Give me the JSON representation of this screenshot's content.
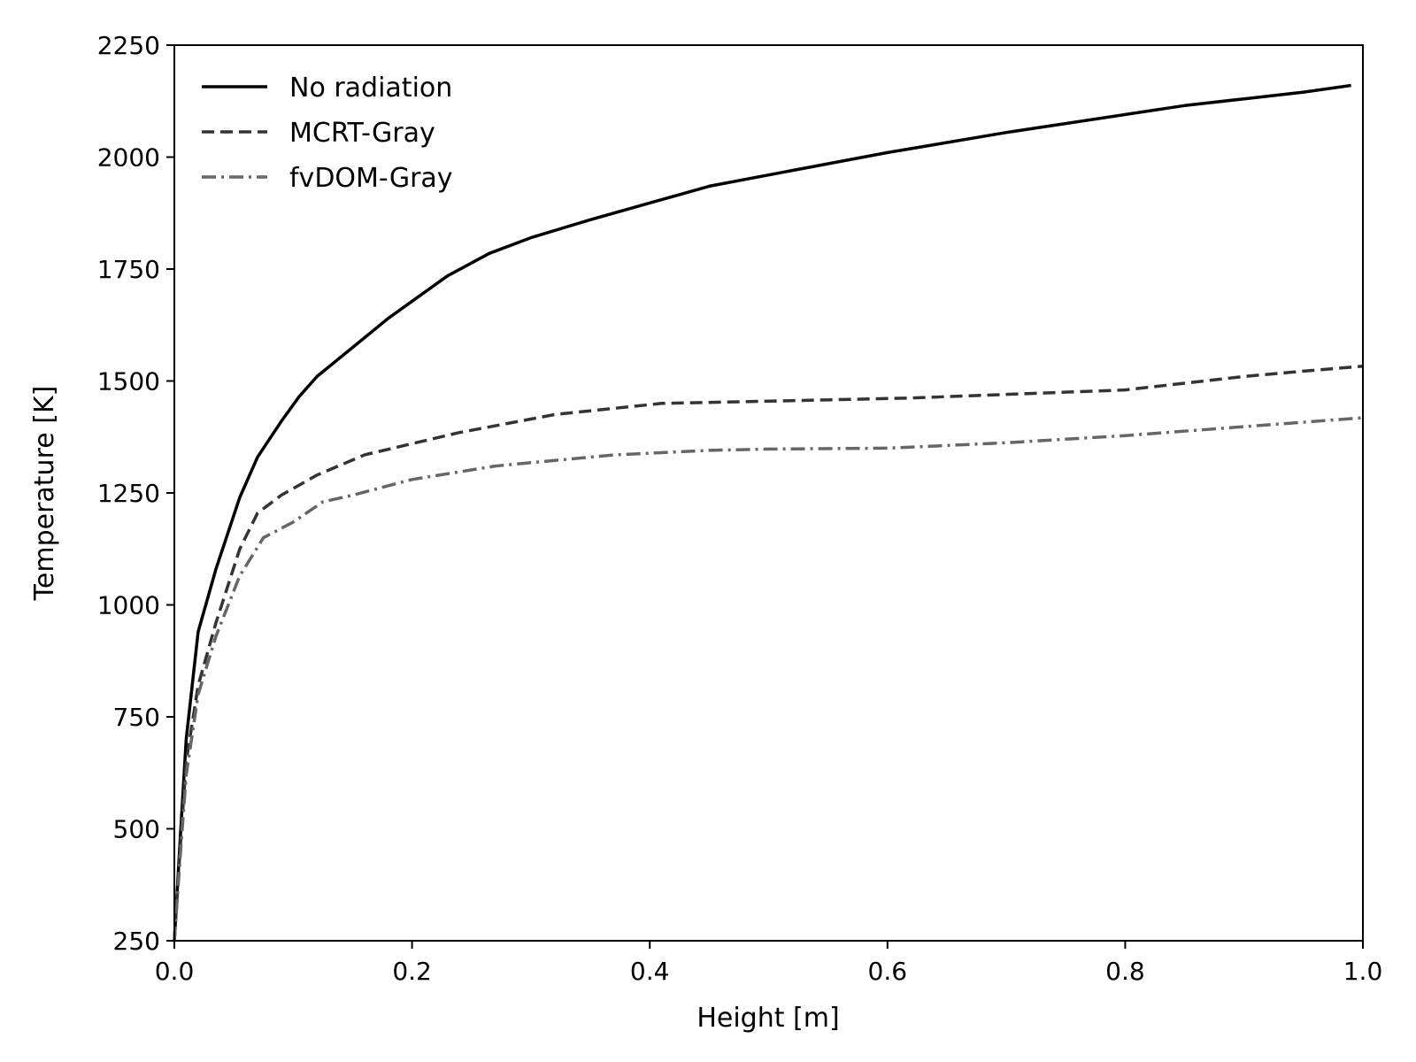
{
  "chart_data": {
    "type": "line",
    "title": "",
    "xlabel": "Height [m]",
    "ylabel": "Temperature [K]",
    "xlim": [
      0.0,
      1.0
    ],
    "ylim": [
      250,
      2250
    ],
    "xticks": [
      "0.0",
      "0.2",
      "0.4",
      "0.6",
      "0.8",
      "1.0"
    ],
    "yticks": [
      "250",
      "500",
      "750",
      "1000",
      "1250",
      "1500",
      "1750",
      "2000",
      "2250"
    ],
    "grid": false,
    "legend_position": "top-left",
    "series": [
      {
        "name": "No radiation",
        "color": "#000000",
        "style": "solid",
        "x": [
          0.0,
          0.005,
          0.01,
          0.02,
          0.035,
          0.055,
          0.07,
          0.09,
          0.105,
          0.12,
          0.15,
          0.18,
          0.23,
          0.265,
          0.3,
          0.35,
          0.41,
          0.45,
          0.5,
          0.6,
          0.7,
          0.8,
          0.85,
          0.9,
          0.95,
          0.99
        ],
        "y": [
          250,
          480,
          700,
          940,
          1080,
          1240,
          1330,
          1410,
          1465,
          1510,
          1575,
          1640,
          1735,
          1785,
          1820,
          1860,
          1905,
          1935,
          1960,
          2010,
          2055,
          2095,
          2115,
          2130,
          2145,
          2160
        ]
      },
      {
        "name": "MCRT-Gray",
        "color": "#333333",
        "style": "dashed",
        "x": [
          0.0,
          0.005,
          0.01,
          0.02,
          0.035,
          0.055,
          0.07,
          0.09,
          0.12,
          0.16,
          0.2,
          0.24,
          0.3,
          0.32,
          0.41,
          0.5,
          0.62,
          0.8,
          0.85,
          0.9,
          0.95,
          1.0
        ],
        "y": [
          250,
          460,
          650,
          820,
          960,
          1125,
          1205,
          1245,
          1290,
          1335,
          1360,
          1385,
          1415,
          1425,
          1450,
          1455,
          1462,
          1480,
          1495,
          1510,
          1522,
          1533
        ]
      },
      {
        "name": "fvDOM-Gray",
        "color": "#666666",
        "style": "dashdot",
        "x": [
          0.0,
          0.005,
          0.01,
          0.02,
          0.035,
          0.055,
          0.075,
          0.1,
          0.125,
          0.15,
          0.2,
          0.27,
          0.37,
          0.45,
          0.5,
          0.6,
          0.7,
          0.8,
          0.9,
          1.0
        ],
        "y": [
          250,
          440,
          620,
          800,
          930,
          1065,
          1150,
          1185,
          1230,
          1245,
          1280,
          1310,
          1335,
          1345,
          1348,
          1350,
          1362,
          1378,
          1398,
          1418
        ]
      }
    ]
  }
}
